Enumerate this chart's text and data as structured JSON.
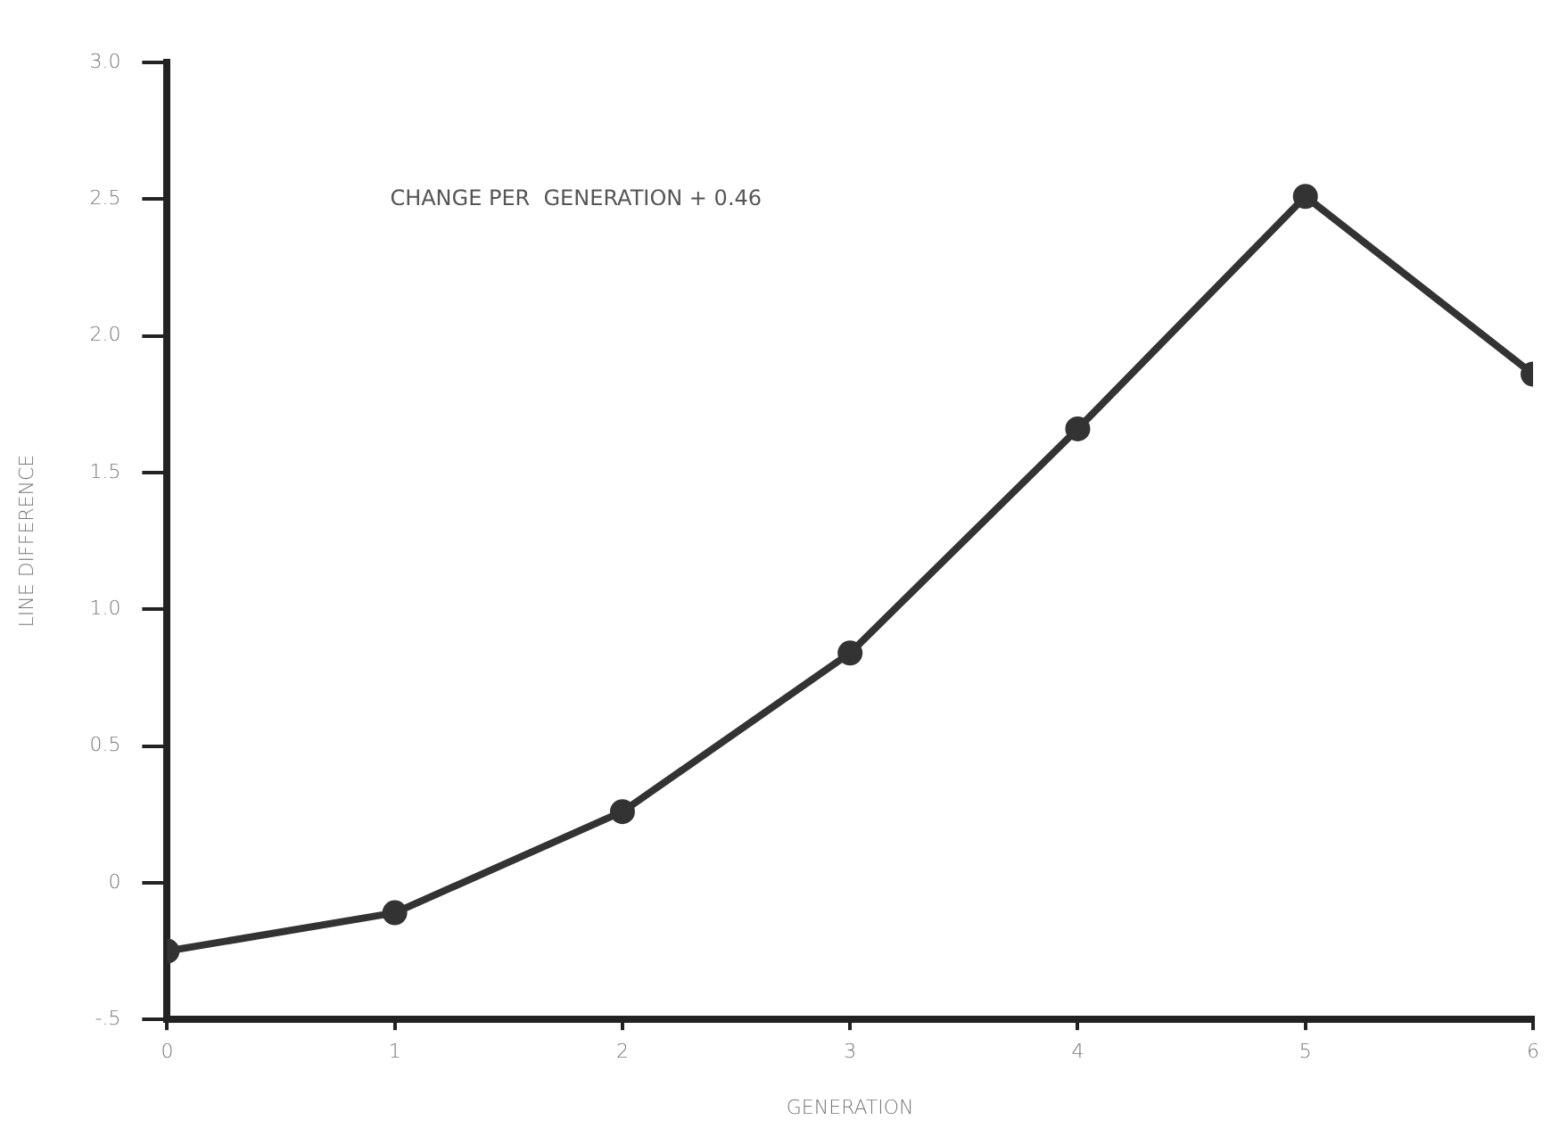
{
  "chart_data": {
    "type": "line",
    "xlabel": "GENERATION",
    "ylabel": "LINE DIFFERENCE",
    "annotations": [
      "CHANGE PER  GENERATION + 0.46"
    ],
    "x": [
      0,
      1,
      2,
      3,
      4,
      5,
      6
    ],
    "series": [
      {
        "color": "#333333",
        "values": [
          -0.25,
          -0.11,
          0.26,
          0.84,
          1.66,
          2.51,
          1.86
        ]
      }
    ],
    "xlim": [
      0,
      6
    ],
    "xticks": [
      0,
      1,
      2,
      3,
      4,
      5,
      6
    ],
    "ylim": [
      -0.5,
      3.0
    ],
    "yticks": [
      {
        "value": -0.5,
        "label": "-.5"
      },
      0,
      {
        "value": 0.5,
        "label": "0.5"
      },
      {
        "value": 1,
        "label": "1.0"
      },
      {
        "value": 1.5,
        "label": "1.5"
      },
      {
        "value": 2,
        "label": "2.0"
      },
      {
        "value": 2.5,
        "label": "2.5"
      },
      {
        "value": 3,
        "label": "3.0"
      }
    ],
    "grid": false,
    "legend": false,
    "marker": "circle",
    "line_style": "solid"
  }
}
